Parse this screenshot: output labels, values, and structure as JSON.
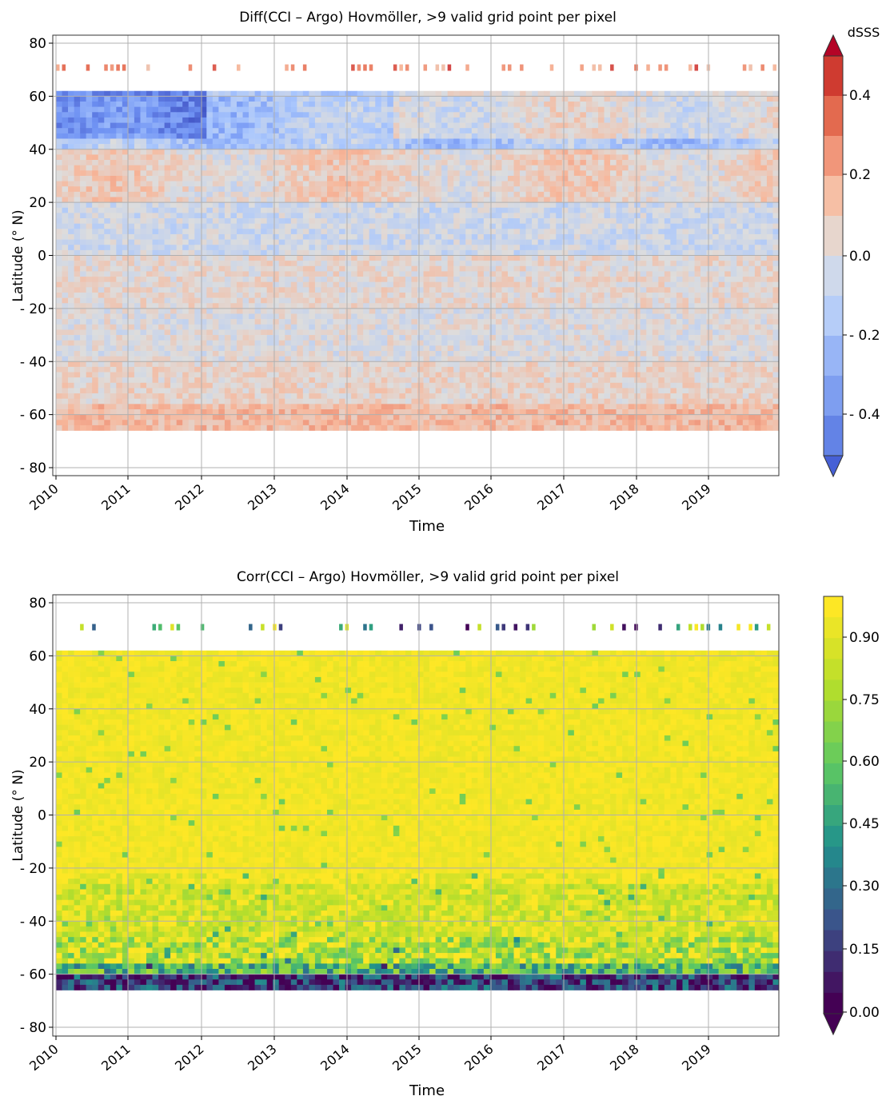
{
  "charts": [
    {
      "key": "diff",
      "title": "Diff(CCI – Argo) Hovmöller, >9 valid grid point per pixel",
      "xlabel": "Time",
      "ylabel": "Latitude (° N)",
      "colorbar_label": "dSSS",
      "colorbar_ticks": [
        "0.4",
        "0.2",
        "0.0",
        "- 0.2",
        "- 0.4"
      ],
      "y_ticks": [
        "80",
        "60",
        "40",
        "20",
        "0",
        "- 20",
        "- 40",
        "- 60",
        "- 80"
      ],
      "x_ticks": [
        "2010",
        "2011",
        "2012",
        "2013",
        "2014",
        "2015",
        "2016",
        "2017",
        "2018",
        "2019"
      ]
    },
    {
      "key": "corr",
      "title": "Corr(CCI – Argo) Hovmöller, >9 valid grid point per pixel",
      "xlabel": "Time",
      "ylabel": "Latitude (° N)",
      "colorbar_label": "",
      "colorbar_ticks": [
        "0.90",
        "0.75",
        "0.60",
        "0.45",
        "0.30",
        "0.15",
        "0.00"
      ],
      "y_ticks": [
        "80",
        "60",
        "40",
        "20",
        "0",
        "- 20",
        "- 40",
        "- 60",
        "- 80"
      ],
      "x_ticks": [
        "2010",
        "2011",
        "2012",
        "2013",
        "2014",
        "2015",
        "2016",
        "2017",
        "2018",
        "2019"
      ]
    }
  ],
  "chart_data": [
    {
      "type": "heatmap",
      "title": "Diff(CCI – Argo) Hovmöller, >9 valid grid point per pixel",
      "xlabel": "Time",
      "ylabel": "Latitude (° N)",
      "x_range": [
        "2010-01",
        "2019-12"
      ],
      "ylim": [
        -85,
        85
      ],
      "grid": true,
      "colormap": "coolwarm (discrete, extended both ends)",
      "color_range": [
        -0.5,
        0.5
      ],
      "colorbar_label": "dSSS",
      "typical_pattern": {
        "bands_lat": [
          [
            62,
            40
          ],
          [
            40,
            20
          ],
          [
            20,
            0
          ],
          [
            0,
            -20
          ],
          [
            -20,
            -40
          ],
          [
            -40,
            -55
          ],
          [
            -55,
            -65
          ]
        ],
        "bands_dsss": [
          -0.15,
          0.05,
          -0.05,
          0.03,
          0.0,
          0.05,
          0.15
        ]
      },
      "colors": {
        "strong_negative": "#4660d6",
        "weak_negative": "#b3ccf7",
        "near_zero_neg": "#cfdaeb",
        "near_zero_pos": "#e9d5cd",
        "weak_positive": "#f4b89c",
        "strong_positive": "#d9402f",
        "extreme_positive": "#b40426"
      }
    },
    {
      "type": "heatmap",
      "title": "Corr(CCI – Argo) Hovmöller, >9 valid grid point per pixel",
      "xlabel": "Time",
      "ylabel": "Latitude (° N)",
      "x_range": [
        "2010-01",
        "2019-12"
      ],
      "ylim": [
        -85,
        85
      ],
      "grid": true,
      "colormap": "viridis (discrete, extended low end)",
      "color_range": [
        0.0,
        1.0
      ],
      "typical_pattern": {
        "bands_lat": [
          [
            62,
            -25
          ],
          [
            -25,
            -45
          ],
          [
            -45,
            -55
          ],
          [
            -55,
            -60
          ],
          [
            -60,
            -65
          ]
        ],
        "bands_corr": [
          0.97,
          0.88,
          0.82,
          0.55,
          0.15
        ]
      },
      "colors": {
        "high": "#fde725",
        "mid_high": "#b5de2b",
        "mid": "#35b779",
        "mid_low": "#26828e",
        "low": "#3e4989",
        "very_low": "#440154"
      }
    }
  ]
}
